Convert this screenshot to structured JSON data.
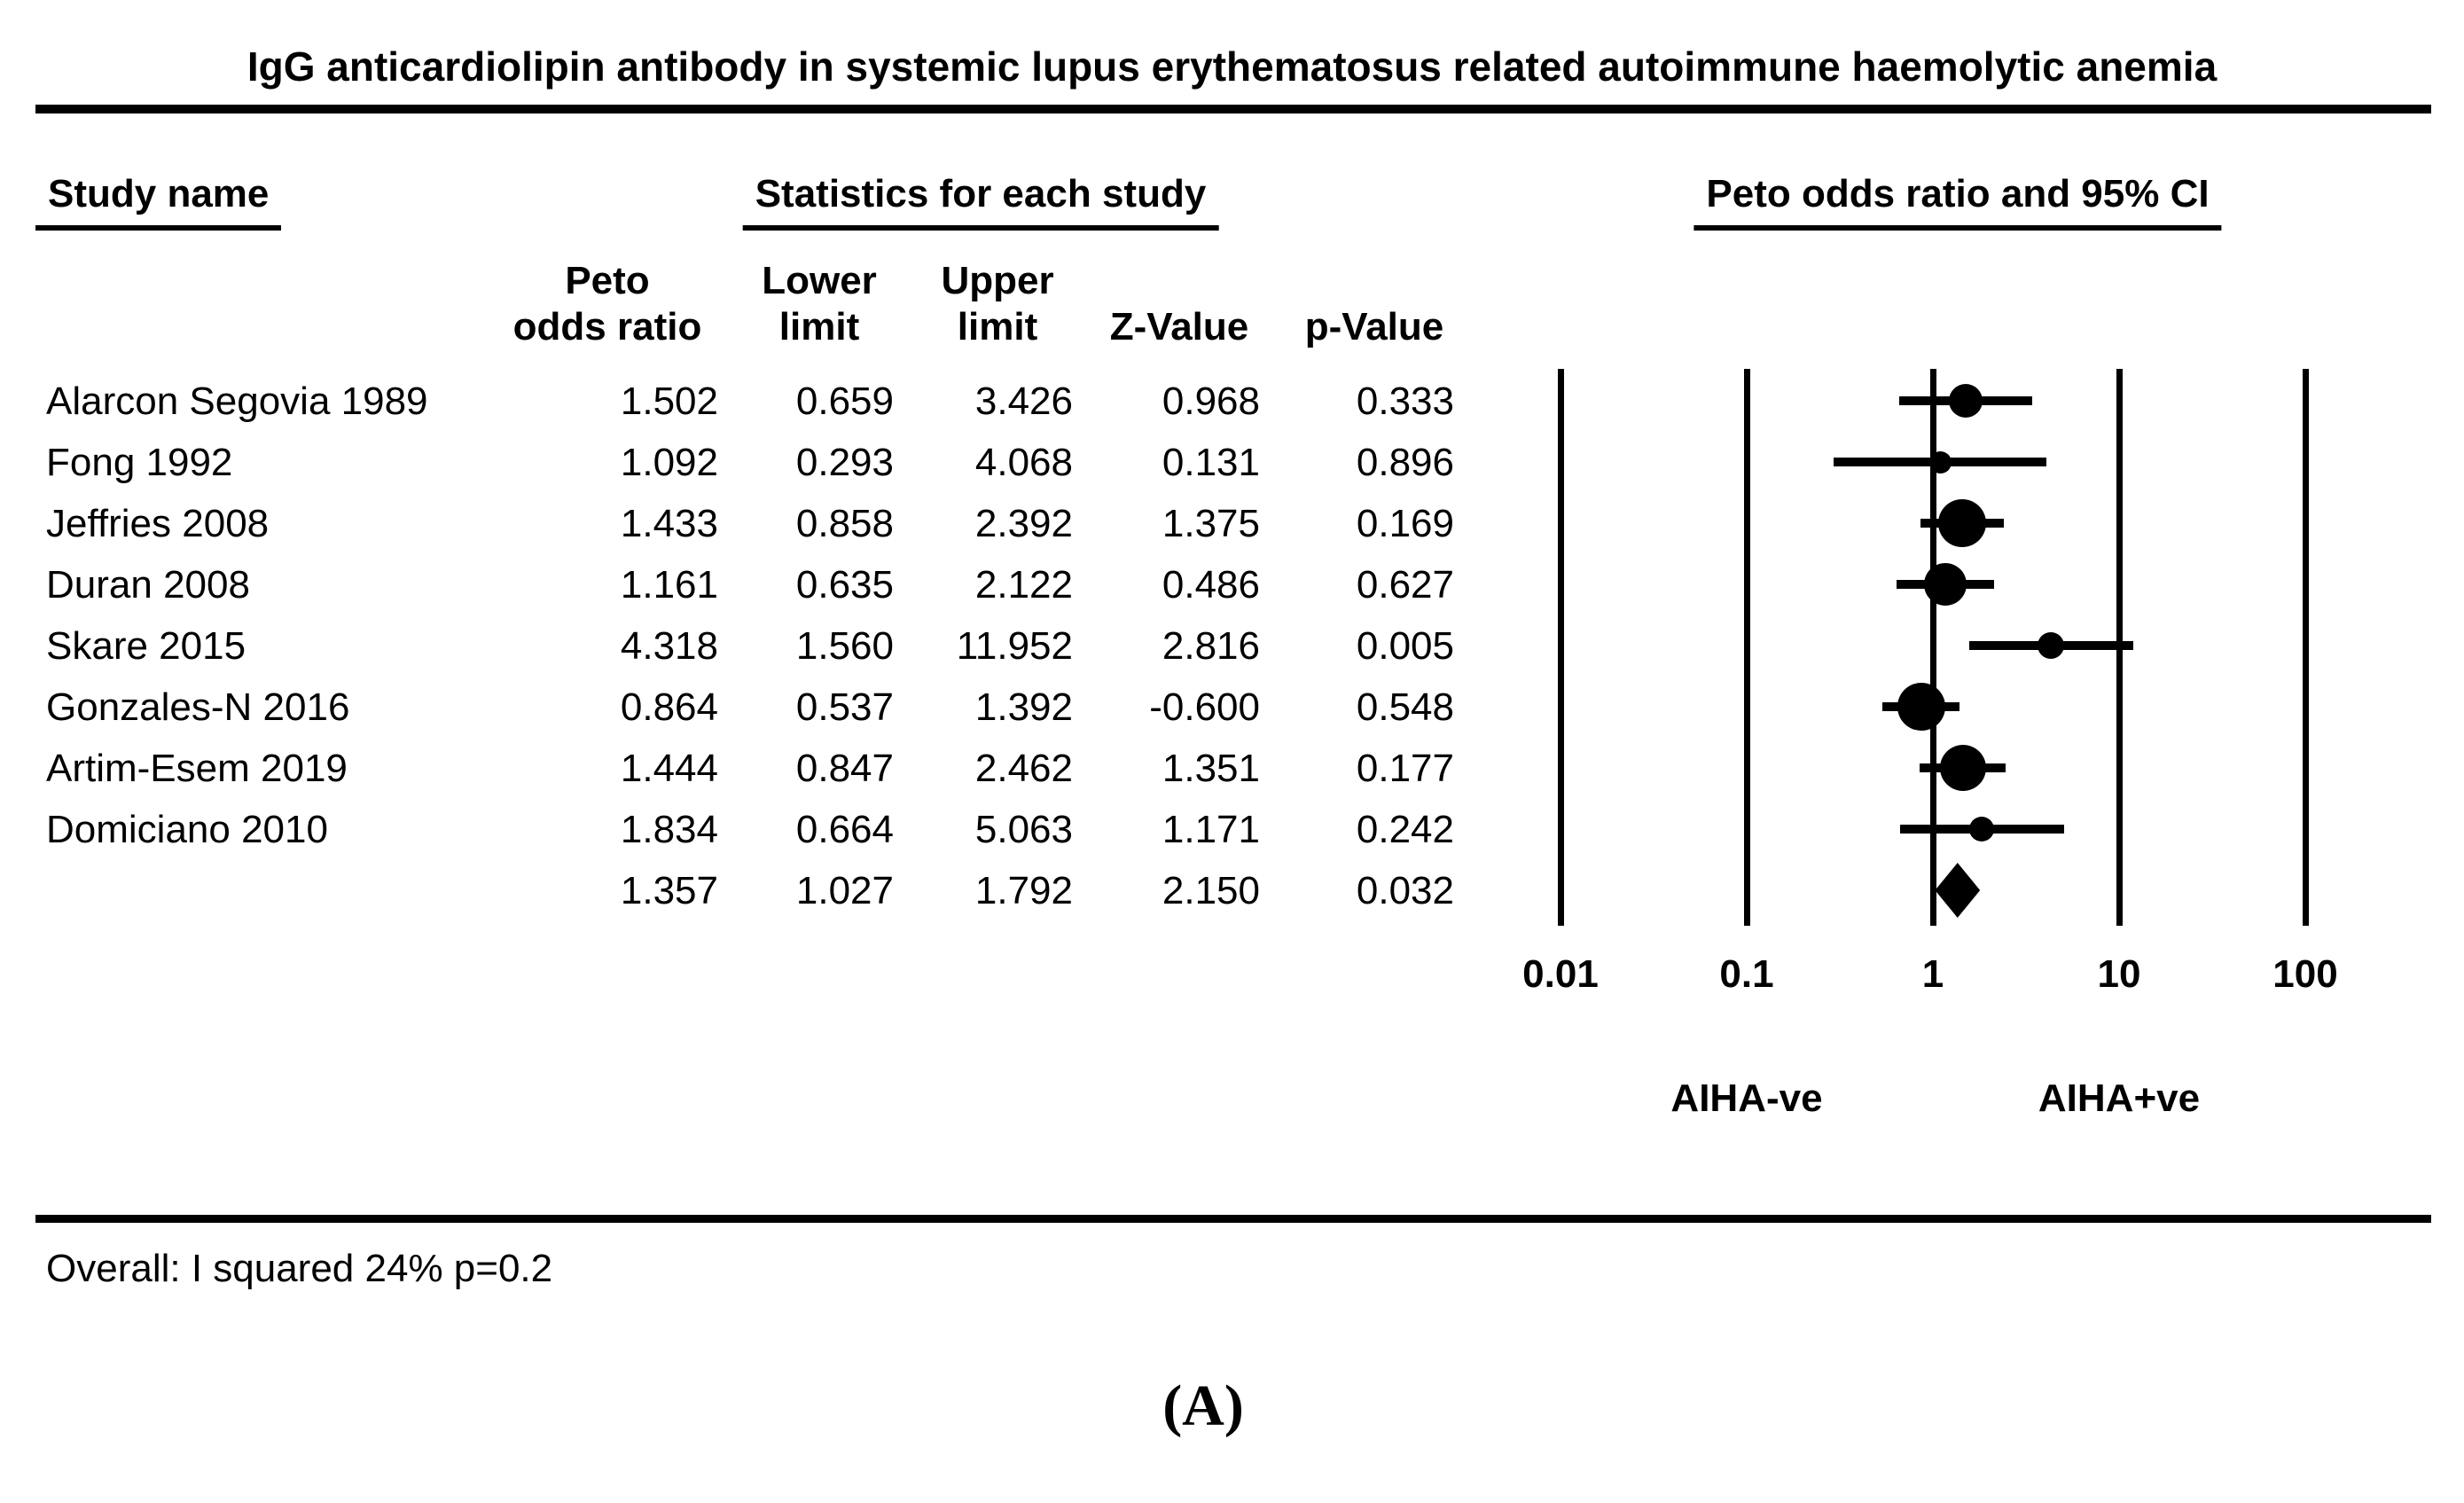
{
  "title": "IgG anticardiolipin antibody in systemic lupus erythematosus related autoimmune haemolytic anemia",
  "section_headers": {
    "study": "Study name",
    "statistics": "Statistics for each study",
    "plot": "Peto odds ratio and 95% CI"
  },
  "column_headers": {
    "peto": [
      "Peto",
      "odds ratio"
    ],
    "lower": [
      "Lower",
      "limit"
    ],
    "upper": [
      "Upper",
      "limit"
    ],
    "z": "Z-Value",
    "p": "p-Value"
  },
  "x_axis": {
    "tick_labels": [
      "0.01",
      "0.1",
      "1",
      "10",
      "100"
    ],
    "left_group_label": "AIHA-ve",
    "right_group_label": "AIHA+ve"
  },
  "footer": {
    "heterogeneity_note": "Overall: I squared 24% p=0.2",
    "panel_label": "(A)"
  },
  "chart_data": {
    "type": "forest",
    "x_scale": "log10",
    "x_ticks": [
      0.01,
      0.1,
      1,
      10,
      100
    ],
    "x_tick_labels": [
      "0.01",
      "0.1",
      "1",
      "10",
      "100"
    ],
    "group_labels": {
      "left": "AIHA-ve",
      "left_at": 0.1,
      "right": "AIHA+ve",
      "right_at": 10
    },
    "effect_measure": "Peto odds ratio",
    "studies": [
      {
        "name": "Alarcon Segovia 1989",
        "peto_or": "1.502",
        "lower": "0.659",
        "upper": "3.426",
        "z": "0.968",
        "p": "0.333",
        "marker_size": 38
      },
      {
        "name": "Fong 1992",
        "peto_or": "1.092",
        "lower": "0.293",
        "upper": "4.068",
        "z": "0.131",
        "p": "0.896",
        "marker_size": 25
      },
      {
        "name": "Jeffries 2008",
        "peto_or": "1.433",
        "lower": "0.858",
        "upper": "2.392",
        "z": "1.375",
        "p": "0.169",
        "marker_size": 54
      },
      {
        "name": "Duran 2008",
        "peto_or": "1.161",
        "lower": "0.635",
        "upper": "2.122",
        "z": "0.486",
        "p": "0.627",
        "marker_size": 48
      },
      {
        "name": "Skare 2015",
        "peto_or": "4.318",
        "lower": "1.560",
        "upper": "11.952",
        "z": "2.816",
        "p": "0.005",
        "marker_size": 30
      },
      {
        "name": "Gonzales-N 2016",
        "peto_or": "0.864",
        "lower": "0.537",
        "upper": "1.392",
        "z": "-0.600",
        "p": "0.548",
        "marker_size": 54
      },
      {
        "name": "Artim-Esem 2019",
        "peto_or": "1.444",
        "lower": "0.847",
        "upper": "2.462",
        "z": "1.351",
        "p": "0.177",
        "marker_size": 52
      },
      {
        "name": "Domiciano 2010",
        "peto_or": "1.834",
        "lower": "0.664",
        "upper": "5.063",
        "z": "1.171",
        "p": "0.242",
        "marker_size": 28
      }
    ],
    "overall": {
      "name": "",
      "peto_or": "1.357",
      "lower": "1.027",
      "upper": "1.792",
      "z": "2.150",
      "p": "0.032"
    }
  }
}
